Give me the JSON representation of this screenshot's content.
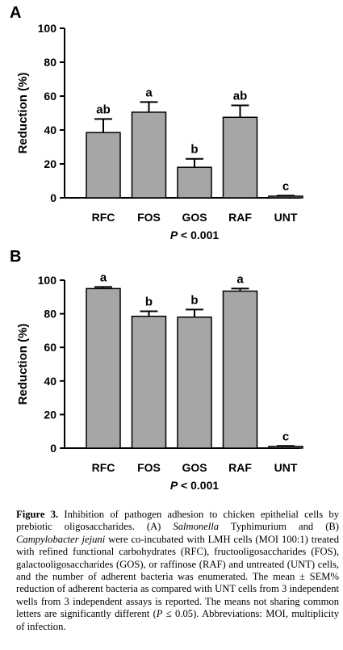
{
  "chart_data": [
    {
      "type": "bar",
      "panel": "A",
      "categories": [
        "RFC",
        "FOS",
        "GOS",
        "RAF",
        "UNT"
      ],
      "values": [
        38.5,
        50.5,
        18,
        47.5,
        1
      ],
      "errors": [
        8,
        6,
        5,
        7,
        0.3
      ],
      "significance": [
        "ab",
        "a",
        "b",
        "ab",
        "c"
      ],
      "ylabel": "Reduction (%)",
      "ylim": [
        0,
        100
      ],
      "yticks": [
        0,
        20,
        40,
        60,
        80,
        100
      ],
      "pvalue": "P < 0.001",
      "bar_color": "#a6a6a6"
    },
    {
      "type": "bar",
      "panel": "B",
      "categories": [
        "RFC",
        "FOS",
        "GOS",
        "RAF",
        "UNT"
      ],
      "values": [
        95,
        78.5,
        78,
        93.5,
        1
      ],
      "errors": [
        1,
        3,
        4.5,
        1.5,
        0.3
      ],
      "significance": [
        "a",
        "b",
        "b",
        "a",
        "c"
      ],
      "ylabel": "Reduction (%)",
      "ylim": [
        0,
        100
      ],
      "yticks": [
        0,
        20,
        40,
        60,
        80,
        100
      ],
      "pvalue": "P < 0.001",
      "bar_color": "#a6a6a6"
    }
  ],
  "caption": {
    "lead": "Figure 3.",
    "t1": " Inhibition of pathogen adhesion to chicken epithelial cells by prebiotic oligosaccharides. (A) ",
    "i1": "Salmonella",
    "t2": " Typhimurium and (B) ",
    "i2": "Campylobacter jejuni",
    "t3": " were co-incubated with LMH cells (MOI 100:1) treated with refined functional carbohydrates (RFC), fructooligosaccharides (FOS), galactooligosaccharides (GOS), or raffinose (RAF) and untreated (UNT) cells, and the number of adherent bacteria was enumerated. The mean ± SEM% reduction of adherent bacteria as compared with UNT cells from 3 independent wells from 3 independent assays is reported. The means not sharing common letters are significantly different (",
    "i3": "P",
    "t4": " ≤ 0.05). Abbreviations: MOI, multiplicity of infection."
  }
}
